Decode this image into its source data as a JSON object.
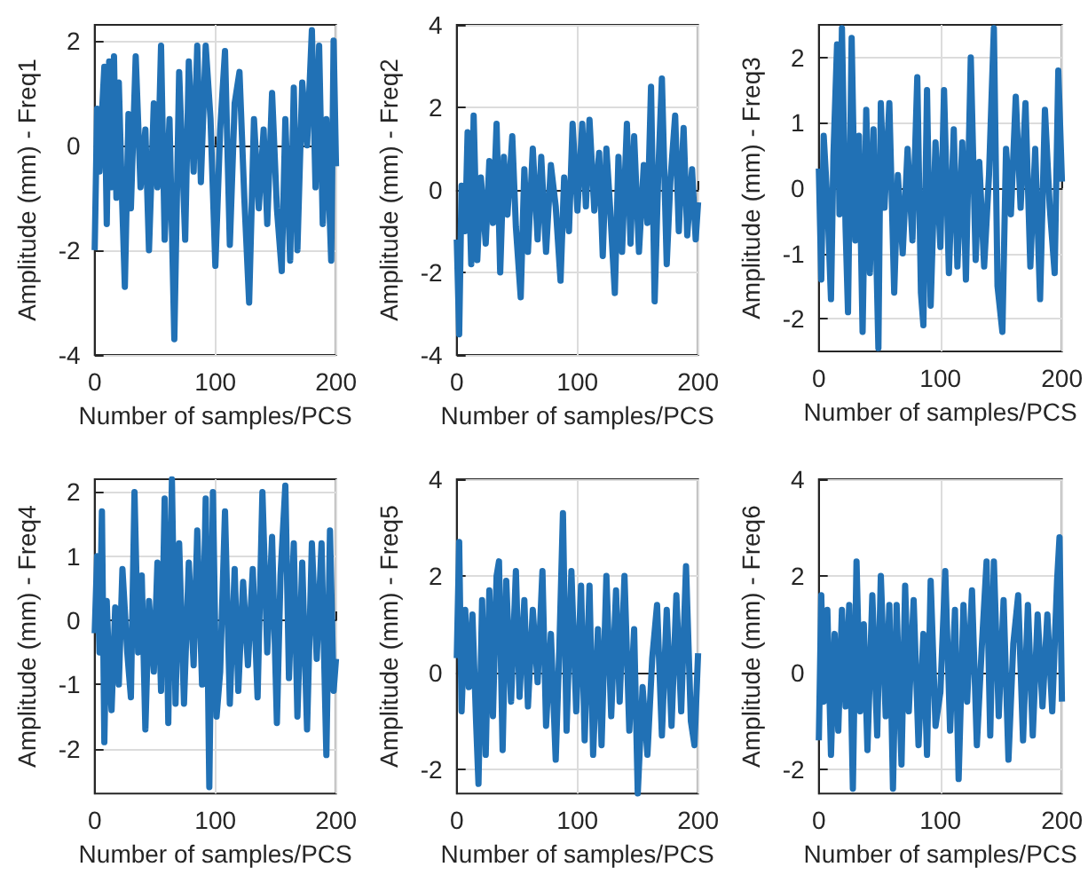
{
  "chart_data": [
    {
      "type": "line",
      "xlabel": "Number of samples/PCS",
      "ylabel": "Amplitude (mm) - Freq1",
      "xlim": [
        0,
        200
      ],
      "xticks": [
        0,
        100,
        200
      ],
      "ylim": [
        -4,
        2.3
      ],
      "yticks": [
        -4,
        -2,
        0,
        2
      ],
      "grid": true,
      "line_style": "solid",
      "marker": "none",
      "x": [
        0,
        2,
        4,
        6,
        8,
        10,
        12,
        14,
        16,
        18,
        20,
        22,
        25,
        28,
        30,
        34,
        38,
        42,
        45,
        49,
        52,
        55,
        58,
        62,
        66,
        70,
        75,
        78,
        82,
        85,
        88,
        92,
        96,
        100,
        104,
        108,
        112,
        116,
        120,
        124,
        128,
        132,
        136,
        140,
        143,
        147,
        151,
        155,
        158,
        162,
        165,
        168,
        172,
        176,
        180,
        183,
        186,
        189,
        192,
        196,
        198,
        200
      ],
      "series": [
        {
          "color": "#2171b5",
          "values": [
            -2,
            0.7,
            -0.5,
            0.6,
            1.5,
            -1.5,
            1.6,
            -0.8,
            1.7,
            -1,
            1.2,
            -0.5,
            -2.7,
            0.6,
            -1.2,
            1.7,
            -0.8,
            0.3,
            -2,
            0.8,
            -0.8,
            1.9,
            -1.8,
            0.5,
            -3.7,
            1.4,
            -1.8,
            1.6,
            -0.5,
            1.9,
            -0.7,
            1.9,
            0.5,
            -2.3,
            0.3,
            1.8,
            -1.9,
            0.8,
            1.4,
            -1,
            -3,
            0.5,
            -1.2,
            0.3,
            -1.5,
            1,
            -1.2,
            -2.4,
            0.5,
            -2.2,
            1.1,
            -2,
            1.2,
            0,
            2.2,
            -0.8,
            1.9,
            -1.5,
            0.5,
            -2.2,
            2,
            -0.4
          ]
        }
      ]
    },
    {
      "type": "line",
      "xlabel": "Number of samples/PCS",
      "ylabel": "Amplitude (mm) - Freq2",
      "xlim": [
        0,
        200
      ],
      "xticks": [
        0,
        100,
        200
      ],
      "ylim": [
        -4,
        4
      ],
      "yticks": [
        -4,
        -2,
        0,
        2,
        4
      ],
      "grid": true,
      "line_style": "solid",
      "marker": "none",
      "x": [
        0,
        2,
        4,
        7,
        9,
        12,
        14,
        17,
        20,
        24,
        27,
        30,
        33,
        36,
        39,
        42,
        46,
        49,
        53,
        56,
        59,
        63,
        67,
        70,
        74,
        78,
        82,
        86,
        89,
        93,
        96,
        100,
        104,
        107,
        110,
        114,
        118,
        121,
        124,
        127,
        131,
        134,
        137,
        141,
        144,
        147,
        151,
        155,
        158,
        161,
        164,
        167,
        170,
        174,
        177,
        181,
        184,
        188,
        191,
        195,
        198,
        200
      ],
      "series": [
        {
          "color": "#2171b5",
          "values": [
            -1.2,
            -3.5,
            0.1,
            -1,
            1.4,
            -1.8,
            1.8,
            -1.7,
            0.3,
            -1.3,
            0.7,
            -0.8,
            1.6,
            -2,
            0.8,
            -0.6,
            1.3,
            -0.9,
            -2.6,
            0.5,
            -1.5,
            1,
            -1.2,
            0.8,
            -1.5,
            0.6,
            -0.4,
            -2.2,
            0.3,
            -1,
            1.6,
            -0.5,
            1.6,
            -0.4,
            1.7,
            -0.5,
            0.9,
            -1.6,
            1,
            -0.4,
            -2.5,
            0.8,
            -1.5,
            1.6,
            -1.3,
            1.3,
            -1.5,
            0.6,
            -0.8,
            2.5,
            -2.7,
            0.4,
            2.7,
            -1.8,
            0.2,
            1.8,
            -1,
            1.5,
            -1.1,
            0.5,
            -1.2,
            -0.3
          ]
        }
      ]
    },
    {
      "type": "line",
      "xlabel": "Number of samples/PCS",
      "ylabel": "Amplitude (mm) - Freq3",
      "xlim": [
        0,
        200
      ],
      "xticks": [
        0,
        100,
        200
      ],
      "ylim": [
        -2.5,
        2.5
      ],
      "yticks": [
        -2,
        -1,
        0,
        1,
        2
      ],
      "grid": true,
      "line_style": "solid",
      "marker": "none",
      "x": [
        0,
        2,
        4,
        7,
        10,
        12,
        15,
        17,
        19,
        22,
        24,
        27,
        30,
        33,
        36,
        39,
        42,
        45,
        49,
        51,
        54,
        58,
        62,
        65,
        69,
        73,
        77,
        81,
        84,
        86,
        89,
        92,
        96,
        100,
        103,
        107,
        111,
        114,
        118,
        121,
        125,
        129,
        132,
        136,
        140,
        144,
        147,
        151,
        154,
        158,
        162,
        166,
        170,
        174,
        178,
        182,
        186,
        190,
        194,
        197,
        200
      ],
      "series": [
        {
          "color": "#2171b5",
          "values": [
            0.3,
            -1.4,
            0.8,
            -0.2,
            -1.7,
            0.5,
            2.2,
            -0.4,
            2.45,
            -0.6,
            -1.9,
            2.3,
            -0.8,
            0.8,
            -2.2,
            1.2,
            -1.3,
            0.9,
            -2.45,
            1.3,
            -0.3,
            1.3,
            -1.6,
            0.2,
            -1,
            0.6,
            -0.8,
            1.7,
            -1.6,
            -2.1,
            1.5,
            -1.8,
            0.7,
            -0.9,
            1.5,
            -1.3,
            0.9,
            -1.2,
            0.7,
            -1.4,
            2.0,
            -1.1,
            0.4,
            -1.2,
            0.2,
            2.45,
            -1.5,
            -2.2,
            0.6,
            -0.4,
            1.4,
            -0.3,
            1.3,
            -1.2,
            0.6,
            -1.7,
            1.2,
            -0.3,
            -1.3,
            1.8,
            0.1
          ]
        }
      ]
    },
    {
      "type": "line",
      "xlabel": "Number of samples/PCS",
      "ylabel": "Amplitude (mm) - Freq4",
      "xlim": [
        0,
        200
      ],
      "xticks": [
        0,
        100,
        200
      ],
      "ylim": [
        -2.7,
        2.2
      ],
      "yticks": [
        -2,
        -1,
        0,
        1,
        2
      ],
      "grid": true,
      "line_style": "solid",
      "marker": "none",
      "x": [
        0,
        2,
        4,
        6,
        8,
        10,
        12,
        14,
        17,
        20,
        23,
        27,
        30,
        33,
        36,
        39,
        42,
        45,
        49,
        52,
        55,
        58,
        61,
        64,
        67,
        70,
        74,
        78,
        82,
        85,
        89,
        92,
        95,
        98,
        101,
        104,
        108,
        112,
        116,
        119,
        123,
        127,
        131,
        135,
        139,
        143,
        147,
        151,
        154,
        158,
        161,
        165,
        168,
        172,
        176,
        180,
        184,
        188,
        192,
        195,
        198,
        200
      ],
      "series": [
        {
          "color": "#2171b5",
          "values": [
            -0.2,
            1,
            -0.5,
            1.7,
            -1.9,
            0.3,
            -0.8,
            -1.4,
            0.2,
            -1,
            0.8,
            -0.5,
            -1.2,
            2.0,
            -0.5,
            0.7,
            -1.7,
            0.3,
            -0.8,
            0.9,
            -1.1,
            1.9,
            -1.6,
            2.2,
            -1.3,
            1.2,
            -1.3,
            0.9,
            -0.7,
            1.4,
            -1,
            1.9,
            -2.6,
            2.0,
            -1.5,
            -0.8,
            1.7,
            -1.3,
            0.8,
            -1.1,
            0.6,
            -0.7,
            0.8,
            -1.2,
            2,
            -0.5,
            1.3,
            -1.6,
            0.7,
            2.1,
            -0.9,
            1.2,
            -1.5,
            0.9,
            -1.7,
            1.2,
            -0.6,
            1.2,
            -2.1,
            1.4,
            -1.1,
            -0.6
          ]
        }
      ]
    },
    {
      "type": "line",
      "xlabel": "Number of samples/PCS",
      "ylabel": "Amplitude (mm) - Freq5",
      "xlim": [
        0,
        200
      ],
      "xticks": [
        0,
        100,
        200
      ],
      "ylim": [
        -2.5,
        4
      ],
      "yticks": [
        -2,
        0,
        2,
        4
      ],
      "grid": true,
      "line_style": "solid",
      "marker": "none",
      "x": [
        0,
        2,
        4,
        7,
        10,
        13,
        16,
        18,
        21,
        24,
        27,
        30,
        33,
        35,
        38,
        41,
        45,
        49,
        52,
        56,
        59,
        63,
        67,
        71,
        74,
        78,
        82,
        85,
        88,
        91,
        95,
        99,
        103,
        106,
        110,
        113,
        117,
        120,
        124,
        128,
        132,
        135,
        139,
        143,
        147,
        150,
        154,
        158,
        162,
        166,
        170,
        174,
        178,
        182,
        186,
        190,
        194,
        197,
        200
      ],
      "series": [
        {
          "color": "#2171b5",
          "values": [
            0.3,
            2.7,
            -0.8,
            1.3,
            -0.3,
            1.2,
            -1,
            -2.3,
            1.5,
            -1.7,
            1.7,
            -0.9,
            2.0,
            2.3,
            -1.6,
            1.9,
            -0.6,
            2.1,
            -0.5,
            1.5,
            -0.7,
            1.3,
            -0.2,
            2.1,
            -1.1,
            0.8,
            -1.8,
            0.5,
            3.3,
            -1.2,
            2.1,
            -0.8,
            1.8,
            -1.4,
            1.8,
            -1.7,
            0.9,
            -1.5,
            2.0,
            -0.9,
            1.7,
            -0.6,
            2.0,
            -1.2,
            0.9,
            -2.5,
            -0.3,
            -1.7,
            0.3,
            1.4,
            -1.3,
            1.3,
            -1.1,
            1.6,
            -0.8,
            2.2,
            -1,
            -1.5,
            0.4
          ]
        }
      ]
    },
    {
      "type": "line",
      "xlabel": "Number of samples/PCS",
      "ylabel": "Amplitude (mm) - Freq6",
      "xlim": [
        0,
        200
      ],
      "xticks": [
        0,
        100,
        200
      ],
      "ylim": [
        -2.5,
        4
      ],
      "yticks": [
        -2,
        0,
        2,
        4
      ],
      "grid": true,
      "line_style": "solid",
      "marker": "none",
      "x": [
        0,
        2,
        4,
        7,
        10,
        13,
        16,
        19,
        22,
        25,
        28,
        31,
        34,
        37,
        40,
        44,
        48,
        51,
        55,
        58,
        61,
        64,
        68,
        71,
        74,
        78,
        82,
        86,
        89,
        92,
        96,
        100,
        104,
        108,
        112,
        115,
        119,
        122,
        126,
        130,
        134,
        138,
        141,
        144,
        148,
        152,
        156,
        160,
        164,
        168,
        172,
        176,
        180,
        184,
        188,
        192,
        196,
        198,
        200
      ],
      "series": [
        {
          "color": "#2171b5",
          "values": [
            -1.4,
            1.6,
            -0.6,
            1.3,
            -1.7,
            0.8,
            -1.2,
            1.3,
            -0.7,
            1.4,
            -2.4,
            2.3,
            -0.8,
            1.0,
            -1.6,
            1.6,
            -1.3,
            2.0,
            -0.9,
            1.4,
            -2.4,
            1.4,
            -1.9,
            1.8,
            -0.8,
            1.5,
            -1.5,
            0.8,
            -1.7,
            1.9,
            -1.1,
            -0.4,
            2.1,
            -1.2,
            1.3,
            -2.2,
            1.4,
            -0.6,
            1.7,
            -1.5,
            0.5,
            2.3,
            -1.3,
            2.3,
            -0.9,
            1.5,
            -1.8,
            0.6,
            1.6,
            -1.4,
            1.4,
            -1.3,
            1.2,
            -0.7,
            1.2,
            -0.8,
            1.9,
            2.8,
            -0.6
          ]
        }
      ]
    }
  ]
}
